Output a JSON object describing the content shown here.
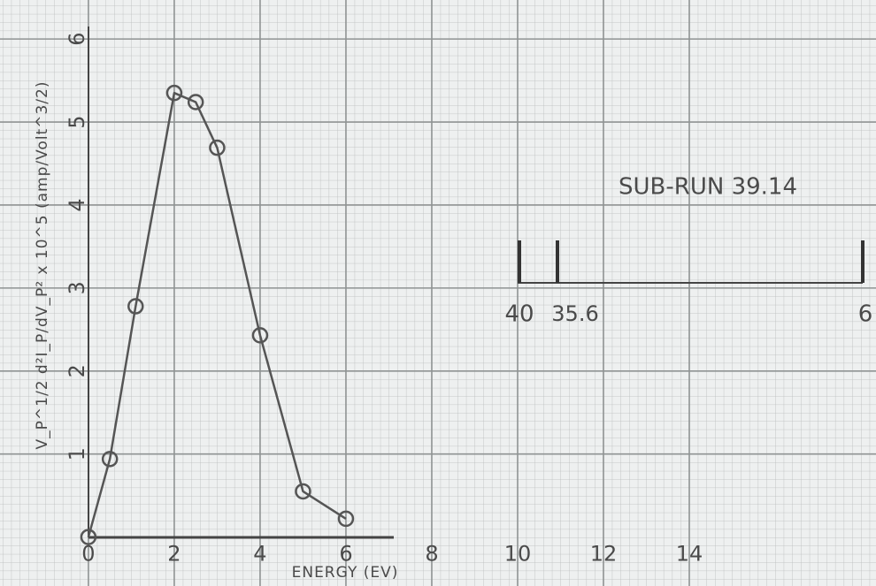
{
  "chart_data": {
    "type": "line",
    "x_label": "ENERGY (EV)",
    "y_label": "V_P^1/2 d²I_P/dV_P² x 10^5 (amp/Volt^3/2)",
    "annotation": "SUB-RUN 39.14",
    "scale_labels": [
      "40",
      "35.6",
      "6"
    ],
    "x": [
      0,
      0.5,
      1.1,
      2.0,
      2.5,
      3.0,
      4.0,
      5.0,
      6.0
    ],
    "series": [
      {
        "color": "#555555",
        "values": [
          0,
          0.94,
          2.78,
          5.35,
          5.24,
          4.69,
          2.43,
          0.55,
          0.22
        ]
      }
    ],
    "xlim": [
      -2.06,
      18.35
    ],
    "ylim": [
      -0.59,
      6.47
    ],
    "xticks": [
      0,
      2,
      4,
      6,
      8,
      10,
      12,
      14
    ],
    "yticks": [
      1,
      2,
      3,
      4,
      5,
      6
    ],
    "grid": true
  }
}
